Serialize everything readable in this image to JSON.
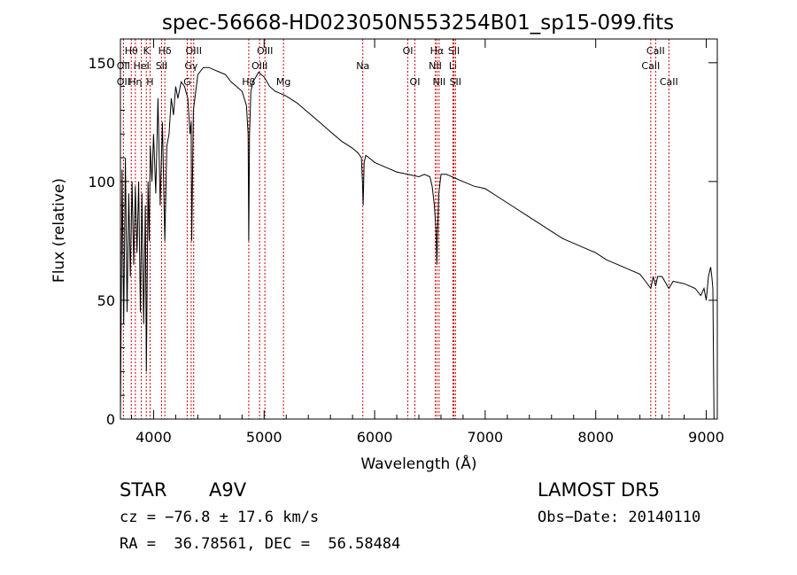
{
  "chart_data": {
    "type": "line",
    "title": "spec-56668-HD023050N553254B01_sp15-099.fits",
    "xlabel": "Wavelength (Å)",
    "ylabel": "Flux (relative)",
    "xlim": [
      3700,
      9100
    ],
    "ylim": [
      0,
      160
    ],
    "x_ticks": [
      4000,
      5000,
      6000,
      7000,
      8000,
      9000
    ],
    "y_ticks": [
      0,
      50,
      100,
      150
    ],
    "grid": false,
    "line_color": "#000000",
    "marker_color": "#cc0000",
    "series": [
      {
        "x": [
          3700,
          3715,
          3730,
          3745,
          3760,
          3775,
          3790,
          3805,
          3820,
          3835,
          3850,
          3865,
          3880,
          3895,
          3910,
          3925,
          3935,
          3950,
          3960,
          3970,
          3985,
          4000,
          4020,
          4040,
          4060,
          4080,
          4101,
          4120,
          4140,
          4160,
          4180,
          4200,
          4220,
          4250,
          4280,
          4310,
          4330,
          4340,
          4345,
          4360,
          4400,
          4450,
          4500,
          4550,
          4600,
          4650,
          4700,
          4750,
          4800,
          4840,
          4855,
          4861,
          4868,
          4880,
          4900,
          4950,
          5000,
          5050,
          5100,
          5150,
          5200,
          5300,
          5400,
          5500,
          5600,
          5700,
          5800,
          5850,
          5880,
          5890,
          5896,
          5905,
          5920,
          5950,
          6000,
          6100,
          6200,
          6300,
          6400,
          6450,
          6500,
          6520,
          6540,
          6555,
          6563,
          6570,
          6580,
          6600,
          6650,
          6700,
          6800,
          6900,
          7000,
          7100,
          7200,
          7300,
          7400,
          7500,
          7600,
          7700,
          7800,
          7900,
          8000,
          8100,
          8200,
          8300,
          8400,
          8450,
          8498,
          8520,
          8542,
          8560,
          8600,
          8662,
          8700,
          8800,
          8900,
          8950,
          8980,
          9000,
          9020,
          9040,
          9050,
          9060,
          9070
        ],
        "y": [
          0,
          105,
          40,
          110,
          45,
          95,
          60,
          100,
          65,
          98,
          70,
          100,
          45,
          95,
          40,
          90,
          20,
          100,
          75,
          115,
          100,
          120,
          95,
          135,
          90,
          125,
          75,
          115,
          120,
          135,
          128,
          140,
          135,
          142,
          140,
          135,
          120,
          125,
          75,
          130,
          145,
          148,
          148,
          147,
          146,
          145,
          142,
          140,
          138,
          132,
          120,
          75,
          120,
          138,
          142,
          146,
          144,
          140,
          138,
          137,
          136,
          133,
          129,
          125,
          121,
          117,
          114,
          112,
          110,
          100,
          90,
          108,
          111,
          110,
          108,
          106,
          104,
          103,
          102,
          103,
          102,
          98,
          90,
          80,
          65,
          78,
          95,
          103,
          103,
          102,
          100,
          98,
          97,
          94,
          91,
          88,
          85,
          82,
          79,
          76,
          74,
          72,
          70,
          67,
          65,
          63,
          61,
          58,
          55,
          60,
          56,
          60,
          60,
          55,
          58,
          57,
          55,
          52,
          55,
          50,
          60,
          64,
          60,
          55,
          0
        ]
      }
    ],
    "line_markers": [
      {
        "label": "Hθ",
        "x": 3798,
        "row": 1
      },
      {
        "label": "K",
        "x": 3934,
        "row": 1
      },
      {
        "label": "Hδ",
        "x": 4102,
        "row": 1
      },
      {
        "label": "OIII",
        "x": 4363,
        "row": 1
      },
      {
        "label": "OIII",
        "x": 5007,
        "row": 1
      },
      {
        "label": "OI",
        "x": 6300,
        "row": 1
      },
      {
        "label": "Hα",
        "x": 6563,
        "row": 1
      },
      {
        "label": "SII",
        "x": 6717,
        "row": 1
      },
      {
        "label": "CaII",
        "x": 8542,
        "row": 1
      },
      {
        "label": "OII",
        "x": 3727,
        "row": 2
      },
      {
        "label": "HeI",
        "x": 3889,
        "row": 2
      },
      {
        "label": "SII",
        "x": 4072,
        "row": 2
      },
      {
        "label": "Gγ",
        "x": 4340,
        "row": 2
      },
      {
        "label": "OIII",
        "x": 4959,
        "row": 2
      },
      {
        "label": "Na",
        "x": 5893,
        "row": 2
      },
      {
        "label": "NII",
        "x": 6548,
        "row": 2
      },
      {
        "label": "Li",
        "x": 6708,
        "row": 2
      },
      {
        "label": "CaII",
        "x": 8498,
        "row": 2
      },
      {
        "label": "OII",
        "x": 3727,
        "row": 3
      },
      {
        "label": "Hη",
        "x": 3835,
        "row": 3
      },
      {
        "label": "H",
        "x": 3968,
        "row": 3
      },
      {
        "label": "G",
        "x": 4304,
        "row": 3
      },
      {
        "label": "Hβ",
        "x": 4861,
        "row": 3
      },
      {
        "label": "Mg",
        "x": 5175,
        "row": 3
      },
      {
        "label": "OI",
        "x": 6364,
        "row": 3
      },
      {
        "label": "NII",
        "x": 6583,
        "row": 3
      },
      {
        "label": "SII",
        "x": 6731,
        "row": 3
      },
      {
        "label": "CaII",
        "x": 8662,
        "row": 3
      }
    ]
  },
  "info": {
    "object_class": "STAR",
    "subclass": "A9V",
    "survey": "LAMOST DR5",
    "cz": "cz = −76.8 ± 17.6 km/s",
    "obs_date": "Obs−Date: 20140110",
    "coords": "RA =  36.78561, DEC =  56.58484"
  }
}
